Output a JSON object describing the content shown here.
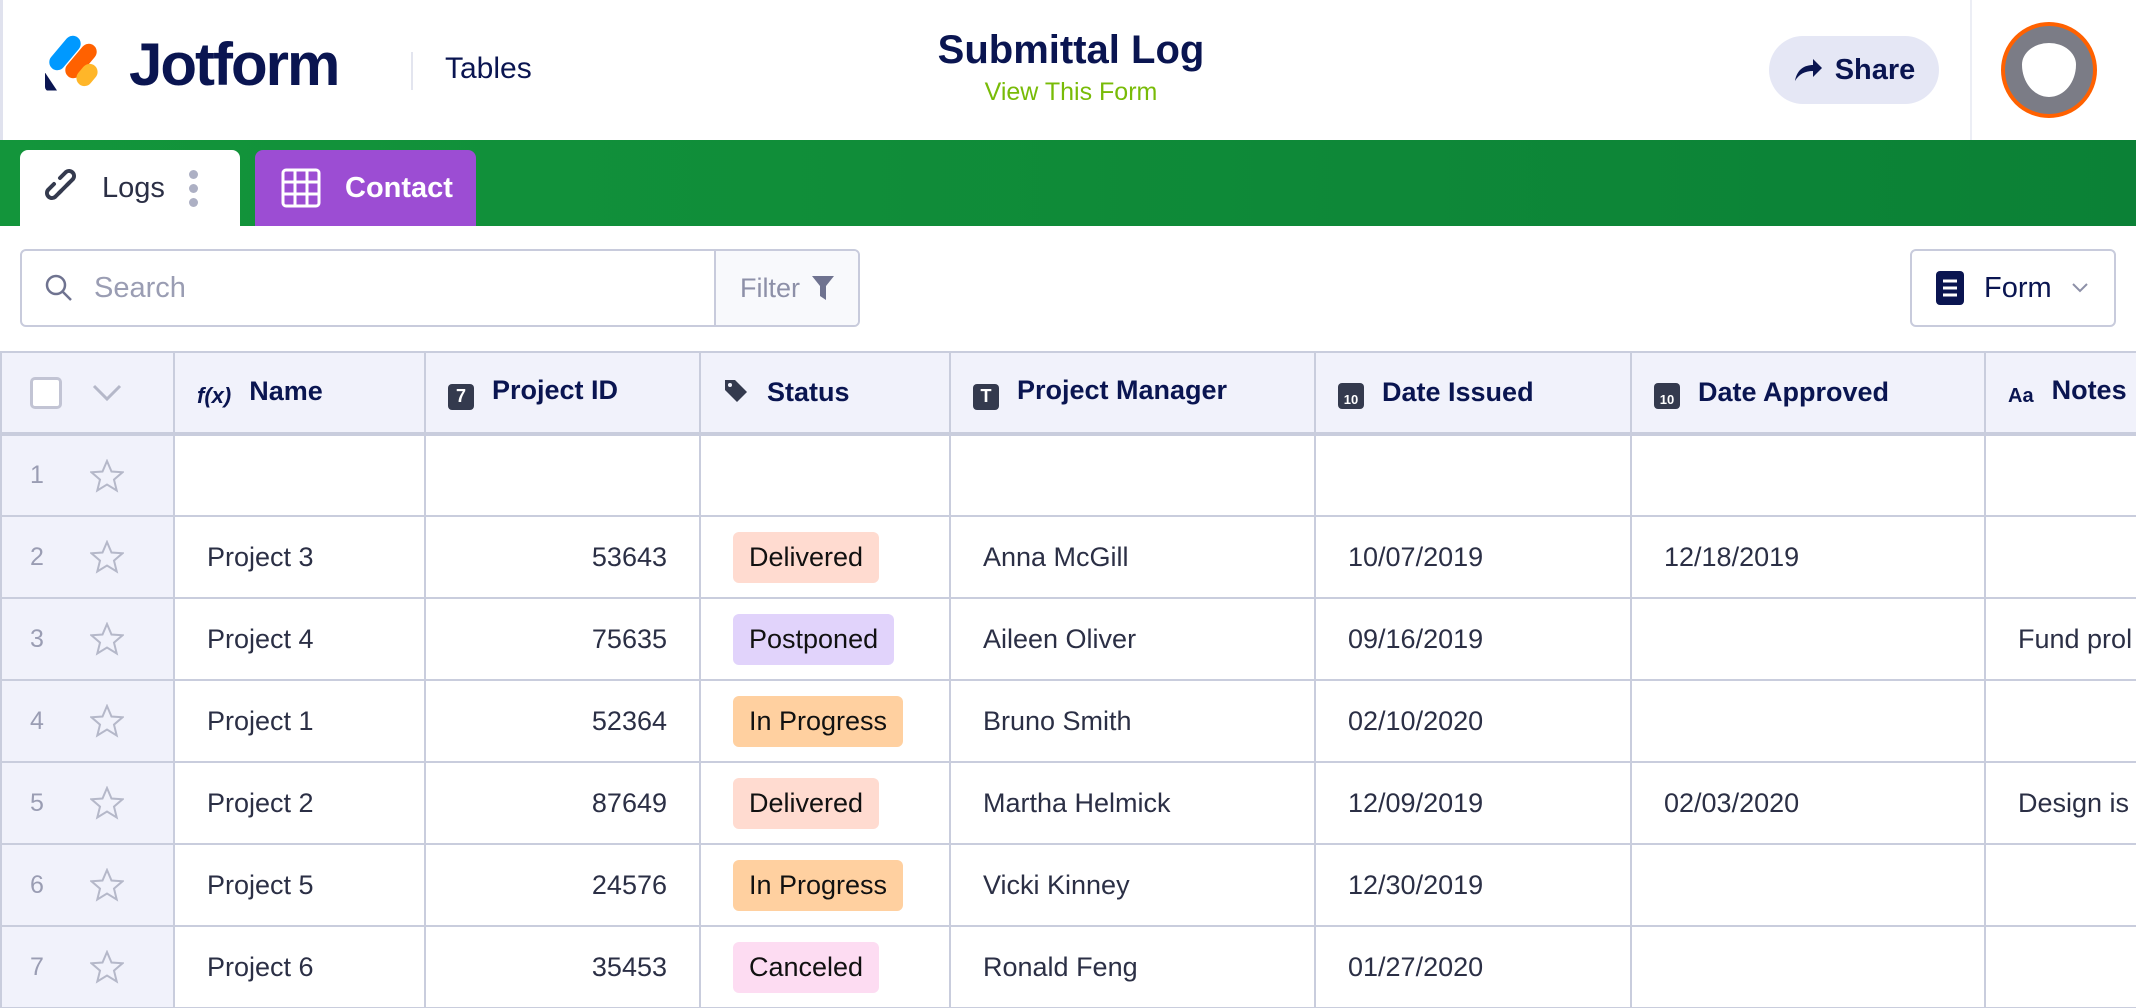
{
  "header": {
    "brand": "Jotform",
    "product": "Tables",
    "title": "Submittal Log",
    "subtitle": "View This Form",
    "share_label": "Share"
  },
  "tabs": [
    {
      "label": "Logs",
      "icon": "link-icon",
      "active": true
    },
    {
      "label": "Contact",
      "icon": "grid-icon",
      "color": "#9c4dd3"
    }
  ],
  "toolbar": {
    "search_placeholder": "Search",
    "filter_label": "Filter",
    "view_label": "Form"
  },
  "columns": [
    {
      "label": "Name",
      "icon": "formula-icon"
    },
    {
      "label": "Project ID",
      "icon": "number-icon"
    },
    {
      "label": "Status",
      "icon": "tag-icon"
    },
    {
      "label": "Project Manager",
      "icon": "text-icon"
    },
    {
      "label": "Date Issued",
      "icon": "calendar-icon"
    },
    {
      "label": "Date Approved",
      "icon": "calendar-icon"
    },
    {
      "label": "Notes",
      "icon": "text-aa-icon"
    }
  ],
  "status_colors": {
    "Delivered": "#ffdbd0",
    "Postponed": "#e1d3fb",
    "In Progress": "#ffd0a0",
    "Canceled": "#fddcf2"
  },
  "rows": [
    {
      "num": "1",
      "name": "",
      "id": "",
      "status": "",
      "pm": "",
      "issued": "",
      "approved": "",
      "notes": ""
    },
    {
      "num": "2",
      "name": "Project 3",
      "id": "53643",
      "status": "Delivered",
      "pm": "Anna McGill",
      "issued": "10/07/2019",
      "approved": "12/18/2019",
      "notes": ""
    },
    {
      "num": "3",
      "name": "Project 4",
      "id": "75635",
      "status": "Postponed",
      "pm": "Aileen Oliver",
      "issued": "09/16/2019",
      "approved": "",
      "notes": "Fund prol"
    },
    {
      "num": "4",
      "name": "Project 1",
      "id": "52364",
      "status": "In Progress",
      "pm": "Bruno Smith",
      "issued": "02/10/2020",
      "approved": "",
      "notes": ""
    },
    {
      "num": "5",
      "name": "Project 2",
      "id": "87649",
      "status": "Delivered",
      "pm": "Martha Helmick",
      "issued": "12/09/2019",
      "approved": "02/03/2020",
      "notes": "Design is"
    },
    {
      "num": "6",
      "name": "Project 5",
      "id": "24576",
      "status": "In Progress",
      "pm": "Vicki Kinney",
      "issued": "12/30/2019",
      "approved": "",
      "notes": ""
    },
    {
      "num": "7",
      "name": "Project 6",
      "id": "35453",
      "status": "Canceled",
      "pm": "Ronald Feng",
      "issued": "01/27/2020",
      "approved": "",
      "notes": ""
    }
  ]
}
